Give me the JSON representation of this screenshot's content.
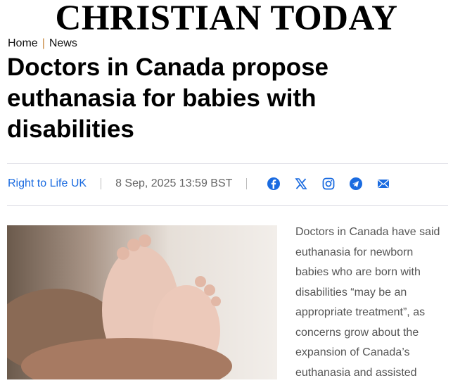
{
  "site": {
    "logo": "CHRISTIAN TODAY"
  },
  "breadcrumb": {
    "items": [
      "Home",
      "News"
    ],
    "separator": "|"
  },
  "article": {
    "title": "Doctors in Canada propose euthanasia for babies with disabilities",
    "author": "Right to Life UK",
    "date": "8 Sep, 2025 13:59 BST",
    "share_icons": [
      "facebook-icon",
      "x-icon",
      "instagram-icon",
      "telegram-icon",
      "email-icon"
    ],
    "body": "Doctors in Canada have said euthanasia for newborn babies who are born with disabilities “may be an appropriate treatment”, as concerns grow about the expansion of Canada’s euthanasia and assisted"
  },
  "colors": {
    "accent": "#1a6be0",
    "separator": "#c8893f"
  }
}
